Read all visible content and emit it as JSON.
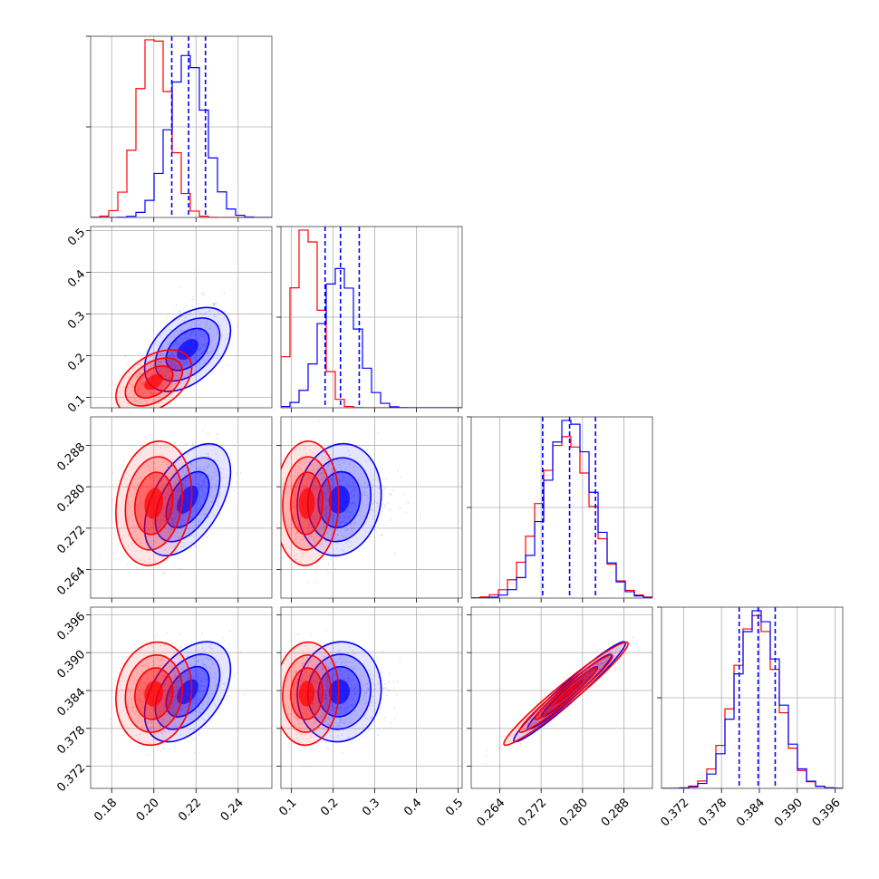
{
  "chart_data": {
    "type": "corner",
    "grid": true,
    "colors": {
      "blue": "#0000ff",
      "red": "#ff0000"
    },
    "series": [
      {
        "color": "blue",
        "means": [
          0.216,
          0.215,
          0.2775,
          0.3838
        ],
        "sds": [
          0.0085,
          0.042,
          0.0045,
          0.0033
        ]
      },
      {
        "color": "red",
        "means": [
          0.2,
          0.137,
          0.2768,
          0.3835
        ],
        "sds": [
          0.0075,
          0.032,
          0.005,
          0.0034
        ]
      }
    ],
    "correlations": [
      {
        "i": 1,
        "j": 0,
        "blue": 0.45,
        "red": 0.45
      },
      {
        "i": 2,
        "j": 0,
        "blue": 0.5,
        "red": 0.15
      },
      {
        "i": 2,
        "j": 1,
        "blue": 0.1,
        "red": 0.05
      },
      {
        "i": 3,
        "j": 0,
        "blue": 0.45,
        "red": 0.1
      },
      {
        "i": 3,
        "j": 1,
        "blue": 0.05,
        "red": 0.05
      },
      {
        "i": 3,
        "j": 2,
        "blue": 0.97,
        "red": 0.97
      }
    ],
    "quantile_lines": [
      [
        0.2085,
        0.2165,
        0.2245
      ],
      [
        0.181,
        0.218,
        0.263
      ],
      [
        0.2723,
        0.2775,
        0.2825
      ],
      [
        0.3808,
        0.3838,
        0.3865
      ]
    ],
    "variables": [
      {
        "range": [
          0.17,
          0.256
        ],
        "ticks": [
          0.18,
          0.2,
          0.22,
          0.24
        ],
        "tick_labels": [
          "0.18",
          "0.20",
          "0.22",
          "0.24"
        ]
      },
      {
        "range": [
          0.075,
          0.51
        ],
        "ticks": [
          0.1,
          0.2,
          0.3,
          0.4,
          0.5
        ],
        "tick_labels": [
          "0.1",
          "0.2",
          "0.3",
          "0.4",
          "0.5"
        ]
      },
      {
        "range": [
          0.2585,
          0.2935
        ],
        "ticks": [
          0.264,
          0.272,
          0.28,
          0.288
        ],
        "tick_labels": [
          "0.264",
          "0.272",
          "0.280",
          "0.288"
        ]
      },
      {
        "range": [
          0.3685,
          0.3972
        ],
        "ticks": [
          0.372,
          0.378,
          0.384,
          0.39,
          0.396
        ],
        "tick_labels": [
          "0.372",
          "0.378",
          "0.384",
          "0.390",
          "0.396"
        ]
      }
    ]
  }
}
